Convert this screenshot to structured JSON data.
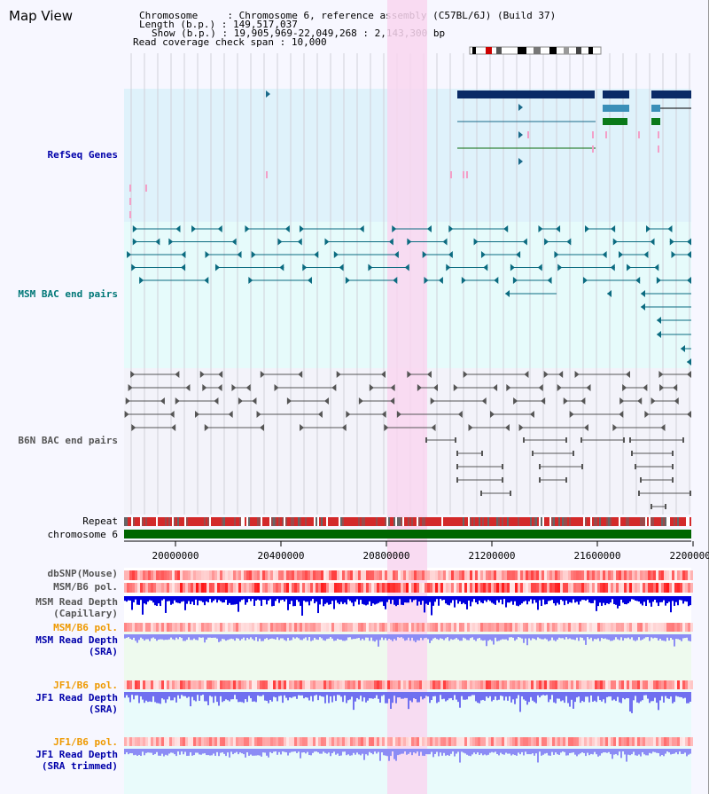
{
  "title": "Map View",
  "header": {
    "chromosome_label": "Chromosome",
    "chromosome_value": "Chromosome 6, reference assembly (C57BL/6J) (Build 37)",
    "length_label": "Length (b.p.)",
    "length_value": "149,517,037",
    "show_label": "Show (b.p.)",
    "show_value": "19,905,969-22,049,268 : 2,143,300 bp",
    "coverage_label": "Read coverage check span",
    "coverage_value": "10,000"
  },
  "tracks": {
    "refseq": "RefSeq Genes",
    "msm_bac": "MSM BAC end pairs",
    "b6n_bac": "B6N BAC end pairs",
    "repeat": "Repeat",
    "chromosome": "chromosome 6",
    "dbsnp": "dbSNP(Mouse)",
    "msm_b6_pol": "MSM/B6 pol.",
    "msm_depth_cap_1": "MSM Read Depth",
    "msm_depth_cap_2": "(Capillary)",
    "msm_b6_pol_2": "MSM/B6 pol.",
    "msm_depth_sra_1": "MSM Read Depth",
    "msm_depth_sra_2": "(SRA)",
    "jf1_b6_pol": "JF1/B6 pol.",
    "jf1_depth_sra_1": "JF1 Read Depth",
    "jf1_depth_sra_2": "(SRA)",
    "jf1_b6_pol_2": "JF1/B6 pol.",
    "jf1_depth_trim_1": "JF1 Read Depth",
    "jf1_depth_trim_2": "(SRA trimmed)"
  },
  "axis_ticks": [
    "20000000",
    "20400000",
    "20800000",
    "21200000",
    "21600000",
    "22000000"
  ],
  "colors": {
    "refseq_bg": "#dff2fb",
    "msm_bg": "#e6fbfb",
    "b6n_bg": "#f3f3fa",
    "highlight": "#f9d6f0",
    "refseq_gene": "#0a2a66",
    "msm_feature": "#0b6b80",
    "b6n_feature": "#555555",
    "repeat": "#d33333",
    "chromosome_bar": "#006600",
    "depth_blue": "#0000dd",
    "depth_light": "#8c8cf5"
  }
}
